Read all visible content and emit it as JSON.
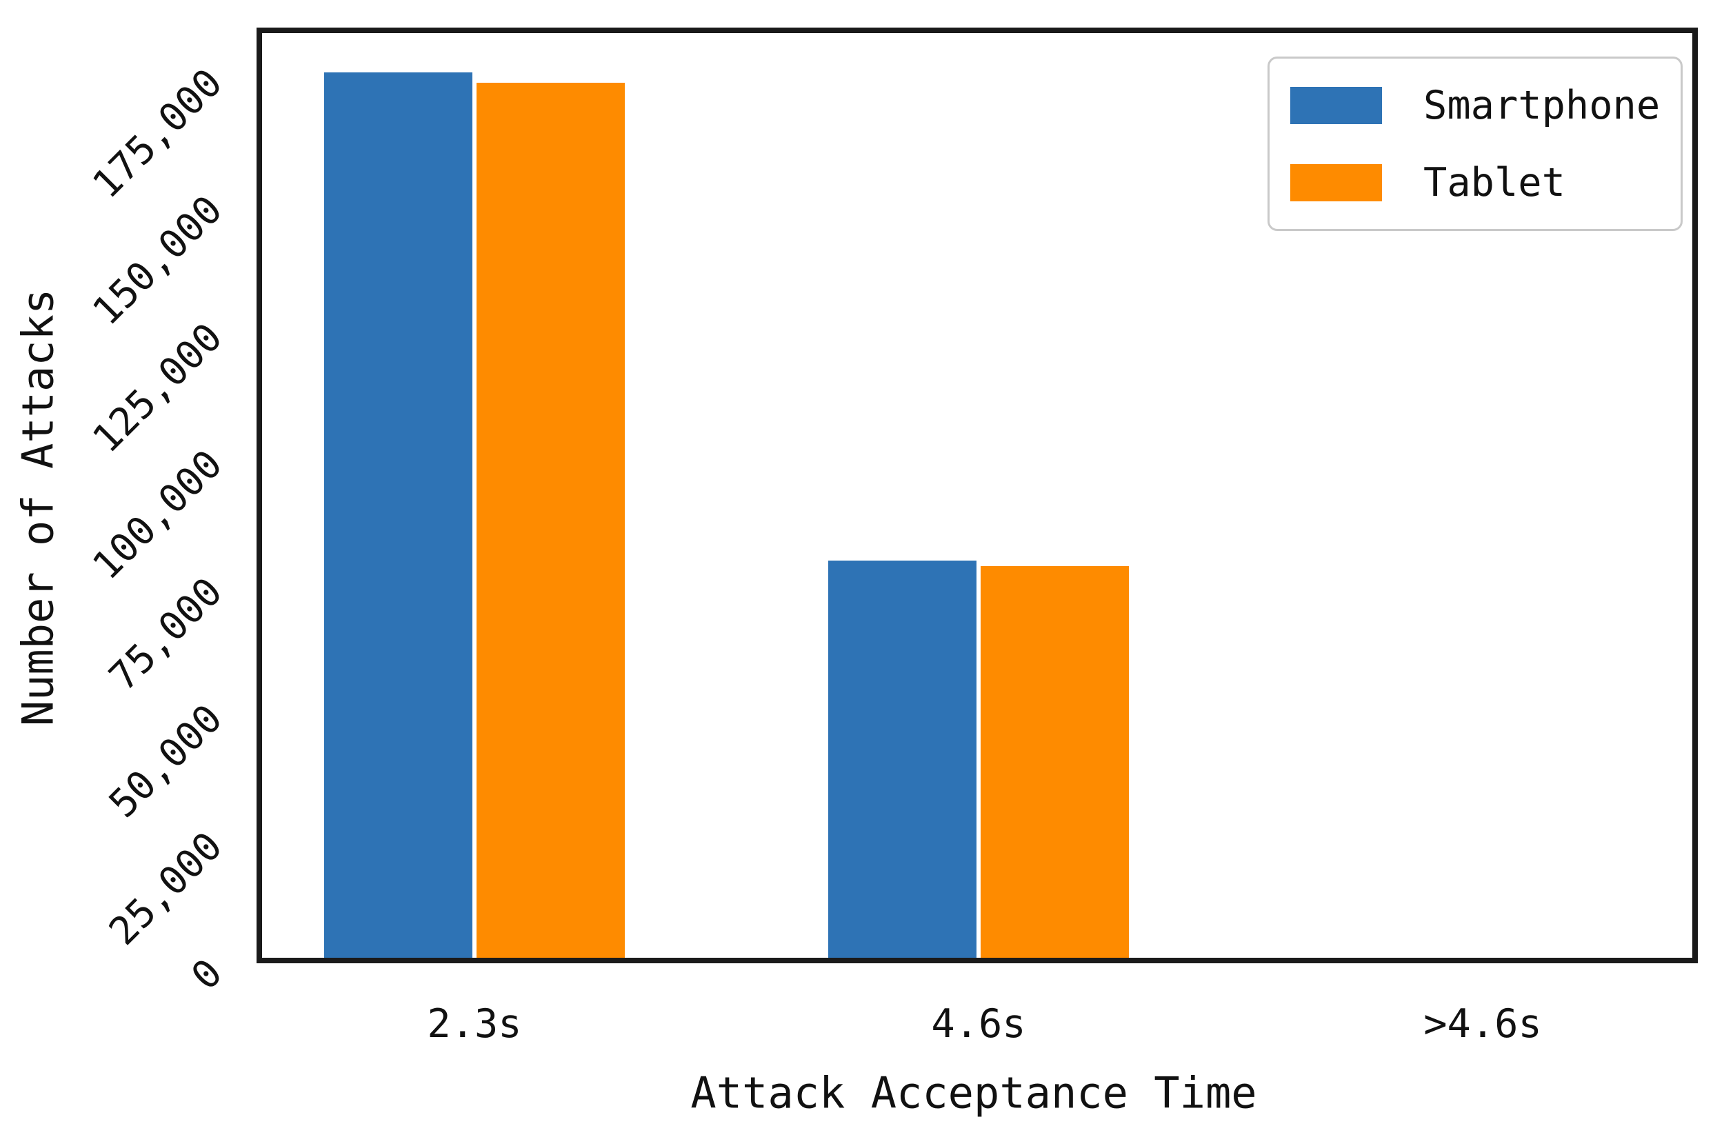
{
  "chart_data": {
    "type": "bar",
    "title": "",
    "categories": [
      "2.3s",
      "4.6s",
      ">4.6s"
    ],
    "series": [
      {
        "name": "Smartphone",
        "color": "#2e73b5",
        "values": [
          174000,
          78000,
          0
        ]
      },
      {
        "name": "Tablet",
        "color": "#fe8b00",
        "values": [
          172000,
          77000,
          0
        ]
      }
    ],
    "xlabel": "Attack Acceptance Time",
    "ylabel": "Number of Attacks",
    "ylim": [
      0,
      183000
    ],
    "ytick_step": 25000,
    "ytick_labels": [
      "0",
      "25,000",
      "50,000",
      "75,000",
      "100,000",
      "125,000",
      "150,000",
      "175,000"
    ],
    "ytick_rotation": 45,
    "xtick_rotation": 0,
    "legend_position": "upper right",
    "grid": false,
    "colors": {
      "spine": "#1a1a1a",
      "background": "#ffffff",
      "legend_border": "#c9c9c9",
      "text": "#111111"
    }
  }
}
